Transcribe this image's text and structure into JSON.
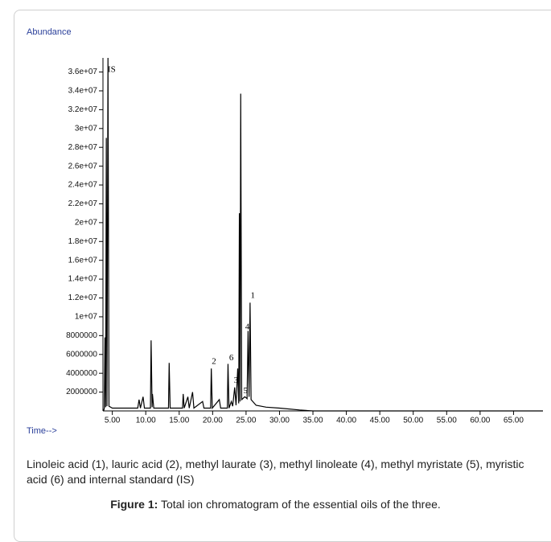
{
  "chart_data": {
    "type": "line",
    "y_label": "Abundance",
    "x_label": "Time-->",
    "color": "#000000",
    "x": [
      3.7,
      3.8,
      3.9,
      4.0,
      4.1,
      4.2,
      4.35,
      4.5,
      5.0,
      8.8,
      9.0,
      9.2,
      9.6,
      9.8,
      10.7,
      10.8,
      10.95,
      11.0,
      11.2,
      13.4,
      13.5,
      13.65,
      15.5,
      15.6,
      15.75,
      16.3,
      16.5,
      17.0,
      17.2,
      18.5,
      18.7,
      19.7,
      19.8,
      19.95,
      21.0,
      21.2,
      22.2,
      22.3,
      22.45,
      22.8,
      23.0,
      23.3,
      23.5,
      23.75,
      23.9,
      24.0,
      24.1,
      24.2,
      24.35,
      24.8,
      25.0,
      25.15,
      25.3,
      25.45,
      25.6,
      25.75,
      26.5,
      28.0,
      30.0,
      33.0,
      35.0,
      69.4
    ],
    "values": [
      0,
      300000,
      7800000,
      400000,
      29000000,
      500000,
      37500000,
      500000,
      300000,
      300000,
      1200000,
      300000,
      1500000,
      300000,
      300000,
      7500000,
      400000,
      1800000,
      300000,
      300000,
      5100000,
      300000,
      300000,
      1800000,
      300000,
      1500000,
      300000,
      2000000,
      300000,
      1000000,
      300000,
      300000,
      4500000,
      300000,
      1200000,
      300000,
      300000,
      5000000,
      300000,
      1000000,
      500000,
      2500000,
      600000,
      4500000,
      800000,
      21000000,
      1000000,
      33700000,
      1200000,
      1500000,
      1400000,
      1300000,
      8500000,
      1500000,
      11500000,
      1200000,
      600000,
      400000,
      300000,
      100000,
      0,
      0
    ],
    "xlim": [
      3.6,
      69.4
    ],
    "ylim": [
      0,
      37500000
    ],
    "xticks": [
      {
        "value": 5,
        "label": "5.00"
      },
      {
        "value": 10,
        "label": "10.00"
      },
      {
        "value": 15,
        "label": "15.00"
      },
      {
        "value": 20,
        "label": "20.00"
      },
      {
        "value": 25,
        "label": "25.00"
      },
      {
        "value": 30,
        "label": "30.00"
      },
      {
        "value": 35,
        "label": "35.00"
      },
      {
        "value": 40,
        "label": "40.00"
      },
      {
        "value": 45,
        "label": "45.00"
      },
      {
        "value": 50,
        "label": "50.00"
      },
      {
        "value": 55,
        "label": "55.00"
      },
      {
        "value": 60,
        "label": "60.00"
      },
      {
        "value": 65,
        "label": "65.00"
      }
    ],
    "yticks": [
      2000000,
      4000000,
      6000000,
      8000000,
      {
        "value": 10000000,
        "label": "1e+07"
      },
      {
        "value": 12000000,
        "label": "1.2e+07"
      },
      {
        "value": 14000000,
        "label": "1.4e+07"
      },
      {
        "value": 16000000,
        "label": "1.6e+07"
      },
      {
        "value": 18000000,
        "label": "1.8e+07"
      },
      {
        "value": 20000000,
        "label": "2e+07"
      },
      {
        "value": 22000000,
        "label": "2.2e+07"
      },
      {
        "value": 24000000,
        "label": "2.4e+07"
      },
      {
        "value": 26000000,
        "label": "2.6e+07"
      },
      {
        "value": 28000000,
        "label": "2.8e+07"
      },
      {
        "value": 30000000,
        "label": "3e+07"
      },
      {
        "value": 32000000,
        "label": "3.2e+07"
      },
      {
        "value": 34000000,
        "label": "3.4e+07"
      },
      {
        "value": 36000000,
        "label": "3.6e+07"
      }
    ],
    "annotations": [
      {
        "text": "IS",
        "x": 4.9,
        "y": 36200000
      },
      {
        "text": "2",
        "x": 20.2,
        "y": 5200000
      },
      {
        "text": "6",
        "x": 22.8,
        "y": 5600000
      },
      {
        "text": "3",
        "x": 23.5,
        "y": 3200000
      },
      {
        "text": "1",
        "x": 26.0,
        "y": 12200000
      },
      {
        "text": "4",
        "x": 25.2,
        "y": 8900000
      },
      {
        "text": "5",
        "x": 24.9,
        "y": 2100000
      }
    ]
  },
  "legend_note": "Linoleic acid (1), lauric acid (2), methyl laurate (3), methyl linoleate (4), methyl myristate (5), myristic acid (6) and internal standard (IS)",
  "figure": {
    "label": "Figure 1:",
    "caption": "Total ion chromatogram of the essential oils of the three."
  }
}
